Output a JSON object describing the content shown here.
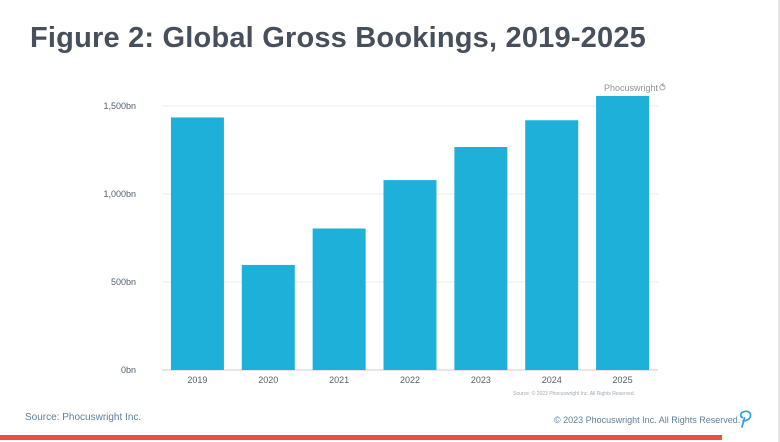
{
  "slide": {
    "title": "Figure 2: Global Gross Bookings, 2019-2025",
    "brand_mark": "Phocuswright",
    "chart_source": "Source: © 2023 Phocuswright Inc. All Rights Reserved.",
    "footer_source": "Source: Phocuswright Inc.",
    "footer_copyright": "© 2023 Phocuswright Inc. All Rights Reserved.",
    "logo_icon": "phocuswright-p-logo-icon",
    "accent_color": "#e6523a",
    "logo_color": "#2ca0d8"
  },
  "chart_data": {
    "type": "bar",
    "title": "",
    "xlabel": "",
    "ylabel": "",
    "categories": [
      "2019",
      "2020",
      "2021",
      "2022",
      "2023",
      "2024",
      "2025"
    ],
    "values": [
      1435,
      597,
      804,
      1079,
      1267,
      1419,
      1557
    ],
    "ylim": [
      0,
      1500
    ],
    "yticks": [
      0,
      500,
      1000,
      1500
    ],
    "ytick_labels": [
      "0bn",
      "500bn",
      "1,000bn",
      "1,500bn"
    ],
    "bar_color": "#1fb0da",
    "grid": true,
    "legend": "none"
  }
}
